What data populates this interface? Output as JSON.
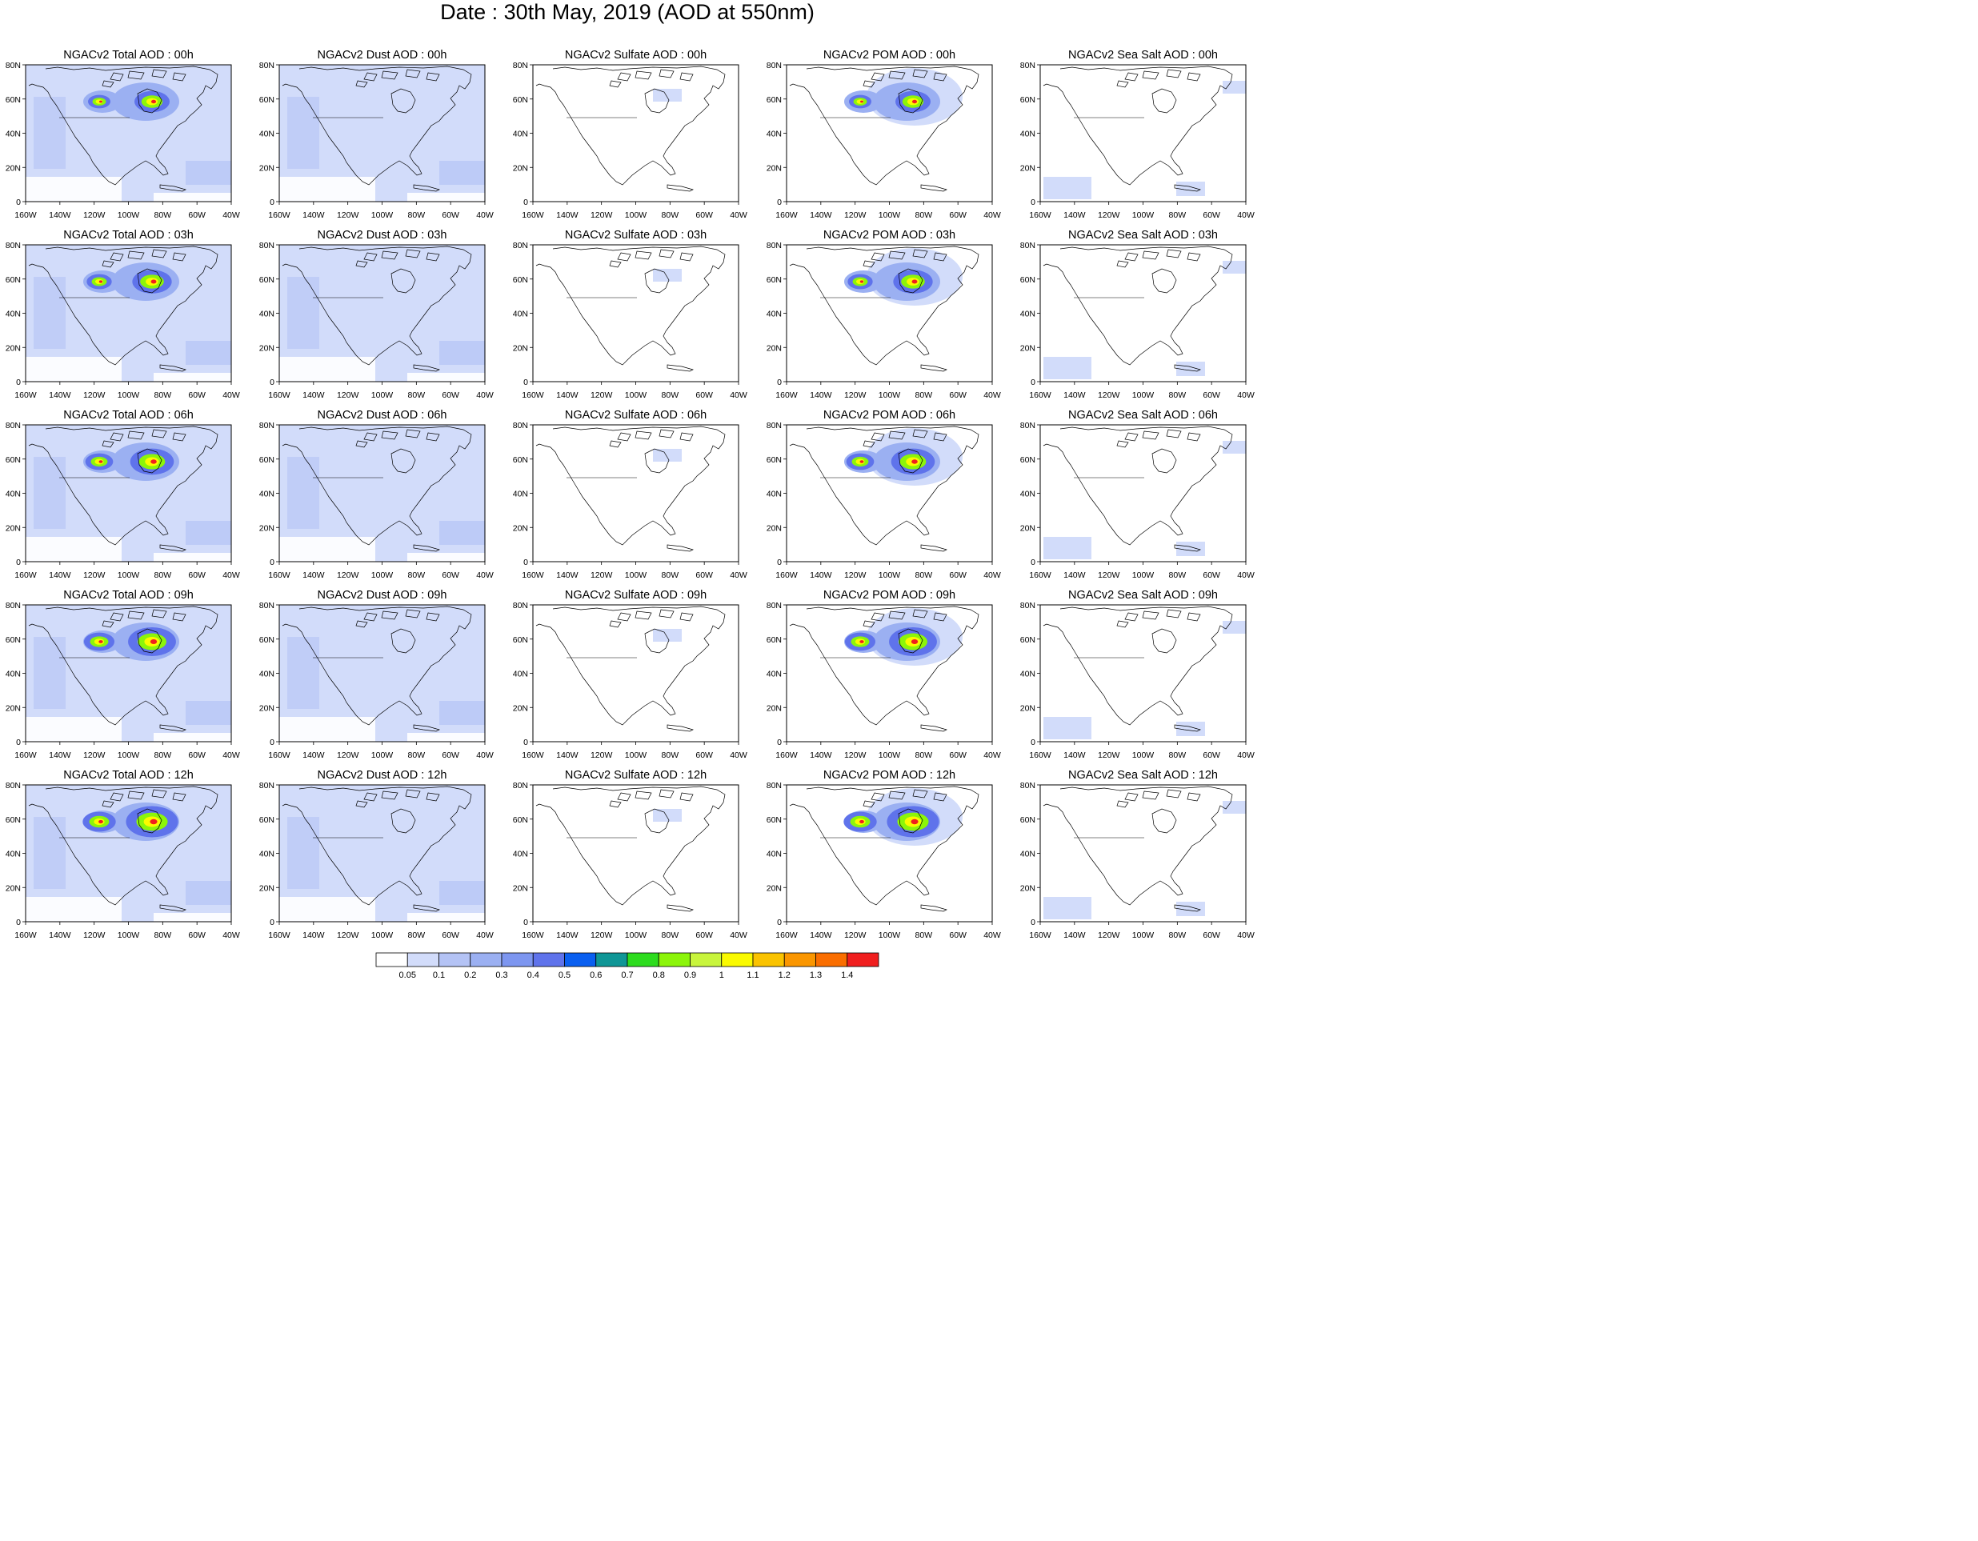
{
  "title": "Date : 30th May, 2019 (AOD at 550nm)",
  "x_tick_labels": [
    "160W",
    "140W",
    "120W",
    "100W",
    "80W",
    "60W",
    "40W"
  ],
  "y_tick_labels": [
    "0",
    "20N",
    "40N",
    "60N",
    "80N"
  ],
  "columns": [
    "total",
    "dust",
    "sulfate",
    "pom",
    "seasalt"
  ],
  "panels": [
    [
      "NGACv2 Total AOD : 00h",
      "NGACv2 Dust AOD : 00h",
      "NGACv2 Sulfate AOD : 00h",
      "NGACv2 POM AOD : 00h",
      "NGACv2 Sea Salt AOD : 00h"
    ],
    [
      "NGACv2 Total AOD : 03h",
      "NGACv2 Dust AOD : 03h",
      "NGACv2 Sulfate AOD : 03h",
      "NGACv2 POM AOD : 03h",
      "NGACv2 Sea Salt AOD : 03h"
    ],
    [
      "NGACv2 Total AOD : 06h",
      "NGACv2 Dust AOD : 06h",
      "NGACv2 Sulfate AOD : 06h",
      "NGACv2 POM AOD : 06h",
      "NGACv2 Sea Salt AOD : 06h"
    ],
    [
      "NGACv2 Total AOD : 09h",
      "NGACv2 Dust AOD : 09h",
      "NGACv2 Sulfate AOD : 09h",
      "NGACv2 POM AOD : 09h",
      "NGACv2 Sea Salt  AOD : 09h"
    ],
    [
      "NGACv2 Total AOD  : 12h",
      "NGACv2 Dust AOD : 12h",
      "NGACv2 Sulfate AOD : 12h",
      "NGACv2 POM  AOD : 12h",
      "NGACv2 Sea Salt  AOD : 12h"
    ]
  ],
  "colorbar": {
    "labels": [
      "0.05",
      "0.1",
      "0.2",
      "0.3",
      "0.4",
      "0.5",
      "0.6",
      "0.7",
      "0.8",
      "0.9",
      "1",
      "1.1",
      "1.2",
      "1.3",
      "1.4"
    ],
    "colors": [
      "#ffffff",
      "#d2dcfa",
      "#b4c3f5",
      "#9bb0f2",
      "#7d96f0",
      "#5f73eb",
      "#0a5ff0",
      "#0f9696",
      "#2ddc1e",
      "#8cf50a",
      "#c8f53c",
      "#fafa00",
      "#fac300",
      "#fa9600",
      "#fa6e00",
      "#f01e1e"
    ]
  },
  "column_base_colors": {
    "total": "#d2dcfa",
    "dust": "#d2dcfa",
    "sulfate": "#ffffff",
    "pom": "#ffffff",
    "seasalt": "#ffffff"
  }
}
